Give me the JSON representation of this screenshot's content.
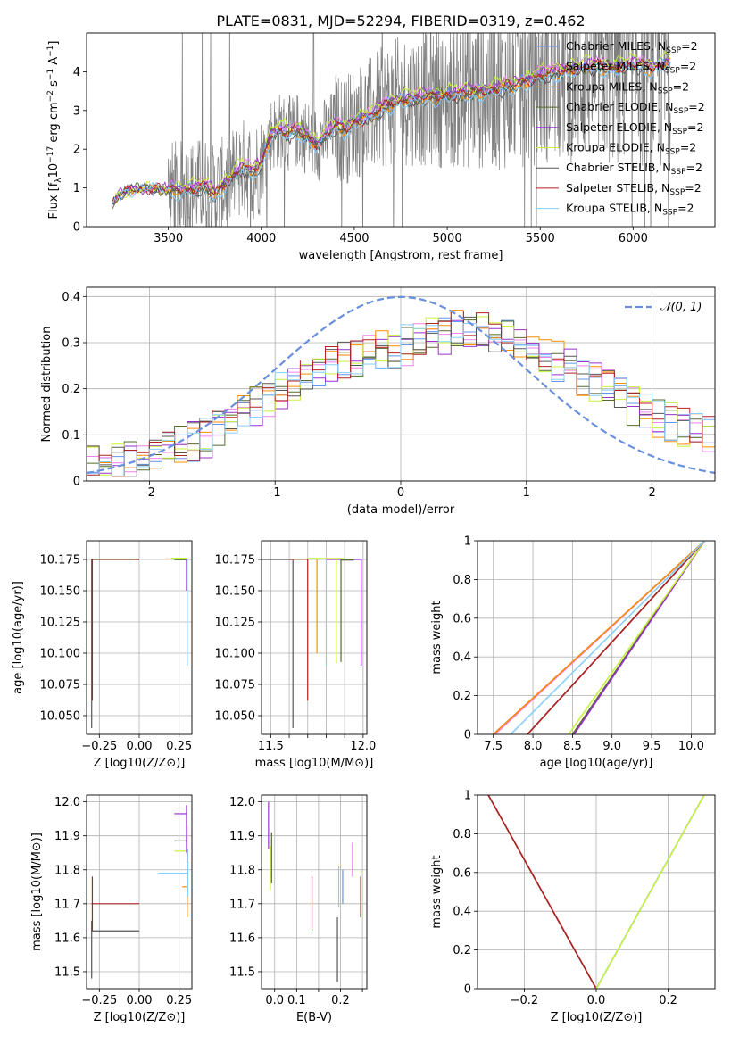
{
  "figure": {
    "title": "PLATE=0831, MJD=52294, FIBERID=0319, z=0.462"
  },
  "colors": {
    "Chabrier MILES": "#6495ed",
    "Salpeter MILES": "#ee82ee",
    "Kroupa MILES": "#ff8c00",
    "Chabrier ELODIE": "#556b2f",
    "Salpeter ELODIE": "#9932cc",
    "Kroupa ELODIE": "#c8f03c",
    "Chabrier STELIB": "#555555",
    "Salpeter STELIB": "#b22222",
    "Kroupa STELIB": "#87cefa",
    "data": "#808080",
    "normal": "#6a8fdc",
    "grid": "#b0b0b0"
  },
  "chart_data": [
    {
      "id": "spectrum",
      "type": "line",
      "title": "PLATE=0831, MJD=52294, FIBERID=0319, z=0.462",
      "xlabel": "wavelength [Angstrom, rest frame]",
      "ylabel": "Flux [f_λ 10^-17 erg cm^-2 s^-1 A^-1]",
      "xlim": [
        3060,
        6440
      ],
      "ylim": [
        0,
        5
      ],
      "xticks": [
        3500,
        4000,
        4500,
        5000,
        5500,
        6000
      ],
      "yticks": [
        0,
        1,
        2,
        3,
        4
      ],
      "grid": false,
      "legend": "top-right",
      "legend_entries": [
        "Chabrier MILES",
        "Salpeter MILES",
        "Kroupa MILES",
        "Chabrier ELODIE",
        "Salpeter ELODIE",
        "Kroupa ELODIE",
        "Chabrier STELIB",
        "Salpeter STELIB",
        "Kroupa STELIB"
      ],
      "legend_suffix": "N_SSP=2",
      "model_x": [
        3200,
        3230,
        3300,
        3400,
        3500,
        3600,
        3700,
        3750,
        3800,
        3850,
        3900,
        3950,
        4000,
        4050,
        4100,
        4150,
        4200,
        4250,
        4300,
        4350,
        4400,
        4450,
        4500,
        4600,
        4700,
        4800,
        4900,
        5000,
        5100,
        5200,
        5300,
        5400,
        5500,
        5600,
        5700,
        5800,
        5900,
        6000,
        6100,
        6200
      ],
      "model_y": [
        0.6,
        0.8,
        0.95,
        1.0,
        0.95,
        0.95,
        1.05,
        0.8,
        1.1,
        1.3,
        1.55,
        1.4,
        1.6,
        2.4,
        2.5,
        2.4,
        2.5,
        2.3,
        2.1,
        2.4,
        2.6,
        2.5,
        2.7,
        2.9,
        3.2,
        3.3,
        3.35,
        3.4,
        3.45,
        3.5,
        3.6,
        3.7,
        3.9,
        4.0,
        4.1,
        4.15,
        4.1,
        4.2,
        4.1,
        4.25
      ],
      "data_x_range": [
        3200,
        6200
      ],
      "data_note_values": [],
      "series": [
        {
          "name": "Chabrier MILES",
          "offset": 0.05
        },
        {
          "name": "Salpeter MILES",
          "offset": 0.1
        },
        {
          "name": "Kroupa MILES",
          "offset": -0.05
        },
        {
          "name": "Chabrier ELODIE",
          "offset": 0.0
        },
        {
          "name": "Salpeter ELODIE",
          "offset": 0.08
        },
        {
          "name": "Kroupa ELODIE",
          "offset": 0.15
        },
        {
          "name": "Chabrier STELIB",
          "offset": -0.08
        },
        {
          "name": "Salpeter STELIB",
          "offset": 0.0
        },
        {
          "name": "Kroupa STELIB",
          "offset": -0.12
        }
      ]
    },
    {
      "id": "residuals",
      "type": "line",
      "xlabel": "(data-model)/error",
      "ylabel": "Normed distribution",
      "xlim": [
        -2.5,
        2.5
      ],
      "ylim": [
        0,
        0.42
      ],
      "xticks": [
        -2,
        -1,
        0,
        1,
        2
      ],
      "yticks": [
        0.0,
        0.1,
        0.2,
        0.3,
        0.4
      ],
      "grid": true,
      "legend": "top-right",
      "legend_entries": [
        "N(0,1)"
      ],
      "bin_width": 0.1,
      "envelope_x": [
        -2.5,
        -2.0,
        -1.5,
        -1.0,
        -0.5,
        0.0,
        0.5,
        1.0,
        1.5,
        2.0,
        2.5
      ],
      "envelope_y": [
        0.03,
        0.05,
        0.1,
        0.19,
        0.26,
        0.29,
        0.33,
        0.3,
        0.22,
        0.14,
        0.1
      ]
    },
    {
      "id": "age-vs-Z",
      "type": "scatter",
      "xlabel": "Z [log10(Z/Z⊙)]",
      "ylabel": "age [log10(age/yr)]",
      "xlim": [
        -0.33,
        0.33
      ],
      "ylim": [
        10.035,
        10.19
      ],
      "xticks": [
        -0.25,
        0.0,
        0.25
      ],
      "xticklabels": [
        "−0.25",
        "0.00",
        "0.25"
      ],
      "yticks": [
        10.05,
        10.075,
        10.1,
        10.125,
        10.15,
        10.175
      ],
      "yticklabels": [
        "10.050",
        "10.075",
        "10.100",
        "10.125",
        "10.150",
        "10.175"
      ],
      "grid": true,
      "hbars": [
        {
          "series": "Chabrier STELIB",
          "y": 10.175,
          "x0": -0.3,
          "x1": 0.0
        },
        {
          "series": "Salpeter STELIB",
          "y": 10.1752,
          "x0": -0.3,
          "x1": 0.0
        },
        {
          "series": "Kroupa STELIB",
          "y": 10.1755,
          "x0": 0.16,
          "x1": 0.3
        },
        {
          "series": "Kroupa ELODIE",
          "y": 10.176,
          "x0": 0.2,
          "x1": 0.3
        },
        {
          "series": "Chabrier ELODIE",
          "y": 10.1748,
          "x0": 0.22,
          "x1": 0.3
        }
      ],
      "vbars": [
        {
          "series": "Chabrier STELIB",
          "x": -0.298,
          "y0": 10.04,
          "y1": 10.175
        },
        {
          "series": "Salpeter STELIB",
          "x": -0.294,
          "y0": 10.062,
          "y1": 10.175
        },
        {
          "series": "Kroupa STELIB",
          "x": 0.301,
          "y0": 10.09,
          "y1": 10.175
        },
        {
          "series": "Salpeter ELODIE",
          "x": 0.296,
          "y0": 10.15,
          "y1": 10.175
        }
      ]
    },
    {
      "id": "age-vs-mass",
      "type": "scatter",
      "xlabel": "mass [log10(M/M⊙)]",
      "xlim": [
        11.45,
        12.02
      ],
      "ylim": [
        10.035,
        10.19
      ],
      "xticks": [
        11.5,
        11.6,
        11.7,
        11.8,
        11.9,
        12.0
      ],
      "xticklabels": [
        "11.5",
        "",
        "",
        "",
        "",
        "12.0"
      ],
      "yticks": [
        10.05,
        10.075,
        10.1,
        10.125,
        10.15,
        10.175
      ],
      "yticklabels": [
        "10.050",
        "10.075",
        "10.100",
        "10.125",
        "10.150",
        "10.175"
      ],
      "grid": true,
      "hbars": [
        {
          "series": "Chabrier STELIB",
          "y": 10.175,
          "x0": 11.45,
          "x1": 11.62
        },
        {
          "series": "Salpeter STELIB",
          "y": 10.1752,
          "x0": 11.6,
          "x1": 11.7
        },
        {
          "series": "Kroupa STELIB",
          "y": 10.1755,
          "x0": 11.7,
          "x1": 11.8
        },
        {
          "series": "Salpeter ELODIE",
          "y": 10.175,
          "x0": 11.8,
          "x1": 11.99
        },
        {
          "series": "Chabrier ELODIE",
          "y": 10.1745,
          "x0": 11.88,
          "x1": 11.95
        },
        {
          "series": "Kroupa ELODIE",
          "y": 10.1758,
          "x0": 11.7,
          "x1": 11.9
        }
      ],
      "vbars": [
        {
          "series": "Chabrier STELIB",
          "x": 11.62,
          "y0": 10.04,
          "y1": 10.175
        },
        {
          "series": "Salpeter STELIB",
          "x": 11.7,
          "y0": 10.062,
          "y1": 10.175
        },
        {
          "series": "Kroupa MILES",
          "x": 11.75,
          "y0": 10.1,
          "y1": 10.175
        },
        {
          "series": "Kroupa STELIB",
          "x": 11.8,
          "y0": 10.09,
          "y1": 10.175
        },
        {
          "series": "Kroupa ELODIE",
          "x": 11.855,
          "y0": 10.092,
          "y1": 10.175
        },
        {
          "series": "Chabrier ELODIE",
          "x": 11.88,
          "y0": 10.093,
          "y1": 10.175
        },
        {
          "series": "Salpeter ELODIE",
          "x": 11.99,
          "y0": 10.09,
          "y1": 10.175
        }
      ]
    },
    {
      "id": "massweight-vs-age",
      "type": "line",
      "xlabel": "age [log10(age/yr)]",
      "ylabel": "mass weight",
      "xlim": [
        7.3,
        10.3
      ],
      "ylim": [
        0.0,
        1.0
      ],
      "xticks": [
        7.5,
        8.0,
        8.5,
        9.0,
        9.5,
        10.0
      ],
      "xticklabels": [
        "7.5",
        "8.0",
        "8.5",
        "9.0",
        "9.5",
        "10.0"
      ],
      "yticks": [
        0.0,
        0.2,
        0.4,
        0.6,
        0.8,
        1.0
      ],
      "grid": true,
      "series": [
        {
          "name": "Chabrier MILES",
          "x": [
            7.5,
            10.17
          ],
          "y": [
            0.0,
            1.0
          ]
        },
        {
          "name": "Salpeter MILES",
          "x": [
            7.52,
            10.17
          ],
          "y": [
            0.0,
            1.0
          ]
        },
        {
          "name": "Kroupa MILES",
          "x": [
            7.5,
            10.17
          ],
          "y": [
            0.0,
            1.0
          ]
        },
        {
          "name": "Chabrier ELODIE",
          "x": [
            8.5,
            10.17
          ],
          "y": [
            0.0,
            1.0
          ]
        },
        {
          "name": "Salpeter ELODIE",
          "x": [
            8.52,
            10.17
          ],
          "y": [
            0.0,
            1.0
          ]
        },
        {
          "name": "Kroupa ELODIE",
          "x": [
            8.45,
            10.17
          ],
          "y": [
            0.0,
            1.0
          ]
        },
        {
          "name": "Chabrier STELIB",
          "x": [
            7.93,
            10.17
          ],
          "y": [
            0.0,
            1.0
          ]
        },
        {
          "name": "Salpeter STELIB",
          "x": [
            7.93,
            10.17
          ],
          "y": [
            0.0,
            1.0
          ]
        },
        {
          "name": "Kroupa STELIB",
          "x": [
            7.72,
            10.17
          ],
          "y": [
            0.0,
            1.0
          ]
        }
      ]
    },
    {
      "id": "mass-vs-Z",
      "type": "scatter",
      "xlabel": "Z [log10(Z/Z⊙)]",
      "ylabel": "mass [log10(M/M⊙)]",
      "xlim": [
        -0.33,
        0.33
      ],
      "ylim": [
        11.45,
        12.02
      ],
      "xticks": [
        -0.25,
        0.0,
        0.25
      ],
      "xticklabels": [
        "−0.25",
        "0.00",
        "0.25"
      ],
      "yticks": [
        11.5,
        11.6,
        11.7,
        11.8,
        11.9,
        12.0
      ],
      "yticklabels": [
        "11.5",
        "11.6",
        "11.7",
        "11.8",
        "11.9",
        "12.0"
      ],
      "grid": true,
      "hbars": [
        {
          "series": "Chabrier STELIB",
          "y": 11.62,
          "x0": -0.3,
          "x1": 0.0
        },
        {
          "series": "Salpeter STELIB",
          "y": 11.7,
          "x0": -0.3,
          "x1": 0.0
        },
        {
          "series": "Kroupa STELIB",
          "y": 11.79,
          "x0": 0.12,
          "x1": 0.3
        },
        {
          "series": "Salpeter ELODIE",
          "y": 11.965,
          "x0": 0.22,
          "x1": 0.3
        },
        {
          "series": "Chabrier ELODIE",
          "y": 11.885,
          "x0": 0.22,
          "x1": 0.3
        },
        {
          "series": "Kroupa ELODIE",
          "y": 11.855,
          "x0": 0.22,
          "x1": 0.3
        },
        {
          "series": "Kroupa MILES",
          "y": 11.75,
          "x0": 0.27,
          "x1": 0.3
        }
      ],
      "vbars": [
        {
          "series": "Chabrier STELIB",
          "x": -0.298,
          "y0": 11.48,
          "y1": 11.65
        },
        {
          "series": "Salpeter STELIB",
          "x": -0.294,
          "y0": 11.62,
          "y1": 11.78
        },
        {
          "series": "Salpeter ELODIE",
          "x": 0.296,
          "y0": 11.85,
          "y1": 11.99
        },
        {
          "series": "Kroupa MILES",
          "x": 0.301,
          "y0": 11.66,
          "y1": 11.78
        },
        {
          "series": "Kroupa STELIB",
          "x": 0.305,
          "y0": 11.72,
          "y1": 11.86
        },
        {
          "series": "Salpeter MILES",
          "x": 0.3,
          "y0": 11.82,
          "y1": 11.93
        }
      ]
    },
    {
      "id": "mass-vs-EBV",
      "type": "scatter",
      "xlabel": "E(B-V)",
      "xlim": [
        0.02,
        0.26
      ],
      "ylim": [
        11.45,
        12.02
      ],
      "xticks": [
        0.05,
        0.1,
        0.15,
        0.2,
        0.25
      ],
      "xticklabels": [
        "0.0",
        "0.1",
        "",
        "0.2",
        ""
      ],
      "yticks": [
        11.5,
        11.6,
        11.7,
        11.8,
        11.9,
        12.0
      ],
      "yticklabels": [
        "11.5",
        "11.6",
        "11.7",
        "11.8",
        "11.9",
        "12.0"
      ],
      "grid": true,
      "vbars": [
        {
          "series": "Salpeter ELODIE",
          "x": 0.036,
          "y0": 11.86,
          "y1": 12.0
        },
        {
          "series": "Kroupa ELODIE",
          "x": 0.04,
          "y0": 11.74,
          "y1": 11.87
        },
        {
          "series": "Chabrier ELODIE",
          "x": 0.043,
          "y0": 11.76,
          "y1": 11.91
        },
        {
          "series": "Salpeter STELIB",
          "x": 0.135,
          "y0": 11.62,
          "y1": 11.78
        },
        {
          "series": "Chabrier STELIB",
          "x": 0.193,
          "y0": 11.47,
          "y1": 11.66
        },
        {
          "series": "Kroupa STELIB",
          "x": 0.196,
          "y0": 11.69,
          "y1": 11.81
        },
        {
          "series": "Chabrier MILES",
          "x": 0.205,
          "y0": 11.7,
          "y1": 11.8
        },
        {
          "series": "Salpeter MILES",
          "x": 0.227,
          "y0": 11.78,
          "y1": 11.88
        },
        {
          "series": "Kroupa MILES",
          "x": 0.245,
          "y0": 11.66,
          "y1": 11.78
        }
      ]
    },
    {
      "id": "massweight-vs-Z",
      "type": "line",
      "xlabel": "Z [log10(Z/Z⊙)]",
      "ylabel": "mass weight",
      "xlim": [
        -0.33,
        0.33
      ],
      "ylim": [
        0.0,
        1.0
      ],
      "xticks": [
        -0.2,
        0.0,
        0.2
      ],
      "xticklabels": [
        "−0.2",
        "0.0",
        "0.2"
      ],
      "yticks": [
        0.0,
        0.2,
        0.4,
        0.6,
        0.8,
        1.0
      ],
      "grid": true,
      "series": [
        {
          "name": "Chabrier STELIB",
          "x": [
            -0.3,
            0.0
          ],
          "y": [
            1.0,
            0.0
          ]
        },
        {
          "name": "Salpeter STELIB",
          "x": [
            -0.3,
            0.0
          ],
          "y": [
            1.0,
            0.0
          ]
        },
        {
          "name": "Chabrier MILES",
          "x": [
            0.0,
            0.3
          ],
          "y": [
            0.0,
            1.0
          ]
        },
        {
          "name": "Kroupa STELIB",
          "x": [
            0.0,
            0.3
          ],
          "y": [
            0.0,
            1.0
          ]
        },
        {
          "name": "Kroupa ELODIE",
          "x": [
            0.0,
            0.3
          ],
          "y": [
            0.0,
            1.0
          ]
        }
      ]
    }
  ]
}
